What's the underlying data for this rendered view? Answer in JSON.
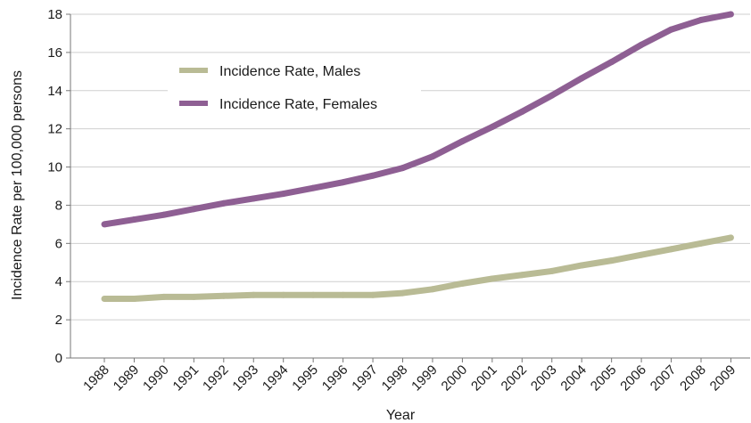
{
  "chart_data": {
    "type": "line",
    "title": "",
    "xlabel": "Year",
    "ylabel": "Incidence Rate per 100,000 persons",
    "ylim": [
      0,
      18
    ],
    "yticks": [
      0,
      2,
      4,
      6,
      8,
      10,
      12,
      14,
      16,
      18
    ],
    "grid": true,
    "legend_position": "top-left",
    "categories": [
      "1988",
      "1989",
      "1990",
      "1991",
      "1992",
      "1993",
      "1994",
      "1995",
      "1996",
      "1997",
      "1998",
      "1999",
      "2000",
      "2001",
      "2002",
      "2003",
      "2004",
      "2005",
      "2006",
      "2007",
      "2008",
      "2009"
    ],
    "series": [
      {
        "name": "Incidence Rate, Males",
        "color": "#b9bb95",
        "values": [
          3.1,
          3.1,
          3.2,
          3.2,
          3.25,
          3.3,
          3.3,
          3.3,
          3.3,
          3.3,
          3.4,
          3.6,
          3.9,
          4.15,
          4.35,
          4.55,
          4.85,
          5.1,
          5.4,
          5.7,
          6.0,
          6.3
        ]
      },
      {
        "name": "Incidence Rate, Females",
        "color": "#8e5f93",
        "values": [
          7.0,
          7.25,
          7.5,
          7.8,
          8.1,
          8.35,
          8.6,
          8.9,
          9.2,
          9.55,
          9.95,
          10.55,
          11.35,
          12.1,
          12.9,
          13.75,
          14.65,
          15.5,
          16.4,
          17.2,
          17.7,
          18.0
        ]
      }
    ]
  }
}
